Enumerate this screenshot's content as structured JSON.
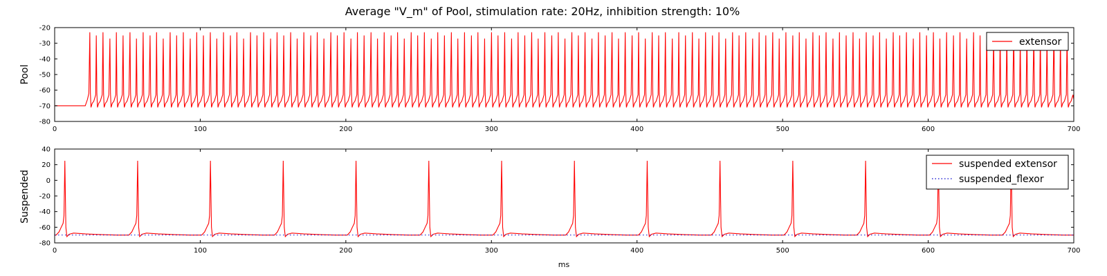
{
  "chart_data": [
    {
      "type": "line",
      "title": "Average \"V_m\" of Pool, stimulation rate: 20Hz, inhibition strength: 10%",
      "ylabel": "Pool",
      "xlabel": "",
      "xlim": [
        0,
        700
      ],
      "ylim": [
        -80,
        -20
      ],
      "xticks": [
        "0",
        "100",
        "200",
        "300",
        "400",
        "500",
        "600",
        "700"
      ],
      "yticks": [
        "-80",
        "-70",
        "-60",
        "-50",
        "-40",
        "-30",
        "-20"
      ],
      "legend_position": "top-right",
      "series": [
        {
          "name": "extensor",
          "color": "#ff0000",
          "style": "solid",
          "resting_potential": -70,
          "spike_peak": -23,
          "spikes_start_ms": 24,
          "approx_spike_count": 147,
          "approx_interspike_ms": 4.6
        }
      ]
    },
    {
      "type": "line",
      "title": "",
      "ylabel": "Suspended",
      "xlabel": "ms",
      "xlim": [
        0,
        700
      ],
      "ylim": [
        -80,
        40
      ],
      "xticks": [
        "0",
        "100",
        "200",
        "300",
        "400",
        "500",
        "600",
        "700"
      ],
      "yticks": [
        "-80",
        "-60",
        "-40",
        "-20",
        "0",
        "20",
        "40"
      ],
      "legend_position": "top-right",
      "series": [
        {
          "name": "suspended extensor",
          "color": "#ff0000",
          "style": "solid",
          "resting_potential": -70,
          "spike_peak": 25,
          "spike_times_ms": [
            7,
            57,
            107,
            157,
            207,
            257,
            307,
            357,
            407,
            457,
            507,
            557,
            607,
            657
          ]
        },
        {
          "name": "suspended_flexor",
          "color": "#0000cc",
          "style": "dotted",
          "constant_value": -70
        }
      ]
    }
  ]
}
